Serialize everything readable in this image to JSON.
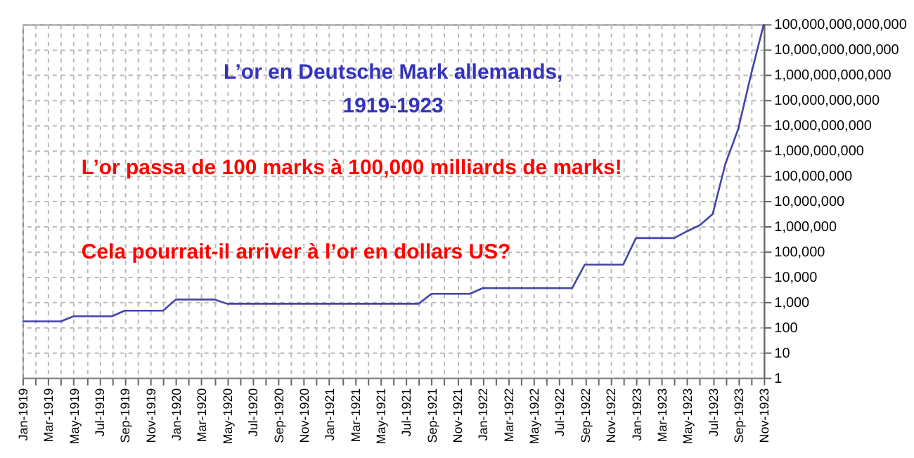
{
  "chart_data": {
    "type": "line",
    "title": "L’or en Deutsche Mark allemands,\n1919-1923",
    "annotations": [
      "L’or passa de 100 marks à 100,000 milliards de marks!",
      "Cela pourrait-il arriver à l’or en dollars US?"
    ],
    "categories": [
      "Jan-1919",
      null,
      "Mar-1919",
      null,
      "May-1919",
      null,
      "Jul-1919",
      null,
      "Sep-1919",
      null,
      "Nov-1919",
      null,
      "Jan-1920",
      null,
      "Mar-1920",
      null,
      "May-1920",
      null,
      "Jul-1920",
      null,
      "Sep-1920",
      null,
      "Nov-1920",
      null,
      "Jan-1921",
      null,
      "Mar-1921",
      null,
      "May-1921",
      null,
      "Jul-1921",
      null,
      "Sep-1921",
      null,
      "Nov-1921",
      null,
      "Jan-1922",
      null,
      "Mar-1922",
      null,
      "May-1922",
      null,
      "Jul-1922",
      null,
      "Sep-1922",
      null,
      "Nov-1922",
      null,
      "Jan-1923",
      null,
      "Mar-1923",
      null,
      "May-1923",
      null,
      "Jul-1923",
      null,
      "Sep-1923",
      null,
      "Nov-1923"
    ],
    "series": [
      {
        "color": "#4444aa",
        "values": [
          170,
          170,
          170,
          170,
          270,
          270,
          270,
          270,
          450,
          450,
          450,
          450,
          1250,
          1250,
          1250,
          1250,
          850,
          850,
          850,
          850,
          850,
          850,
          850,
          850,
          850,
          850,
          850,
          850,
          850,
          850,
          850,
          850,
          2100,
          2100,
          2100,
          2100,
          3500,
          3500,
          3500,
          3500,
          3500,
          3500,
          3500,
          3500,
          30000,
          30000,
          30000,
          30000,
          340000,
          340000,
          340000,
          340000,
          630000,
          1100000,
          3000000,
          300000000,
          7000000000,
          1000000000000,
          100000000000000
        ]
      }
    ],
    "log": "y",
    "ylim": [
      1,
      100000000000000
    ],
    "yticks": [
      1,
      10,
      100,
      {
        "value": 1000,
        "label": "1,000"
      },
      {
        "value": 10000,
        "label": "10,000"
      },
      {
        "value": 100000,
        "label": "100,000"
      },
      {
        "value": 1000000,
        "label": "1,000,000"
      },
      {
        "value": 10000000,
        "label": "10,000,000"
      },
      {
        "value": 100000000,
        "label": "100,000,000"
      },
      {
        "value": 1000000000,
        "label": "1,000,000,000"
      },
      {
        "value": 10000000000,
        "label": "10,000,000,000"
      },
      {
        "value": 100000000000,
        "label": "100,000,000,000"
      },
      {
        "value": 1000000000000,
        "label": "1,000,000,000,000"
      },
      {
        "value": 10000000000000,
        "label": "10,000,000,000,000"
      },
      {
        "value": 100000000000000,
        "label": "100,000,000,000,000"
      }
    ],
    "grid": true,
    "marker": "none",
    "line_style": "solid"
  }
}
